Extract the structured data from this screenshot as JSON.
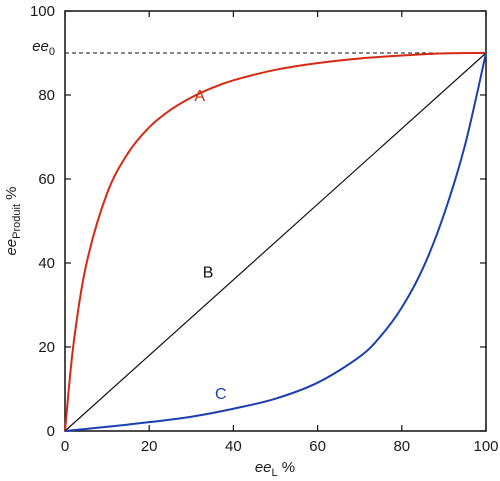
{
  "chart_data": {
    "type": "line",
    "xlabel": {
      "main": "ee",
      "sub": "L",
      "unit": " %"
    },
    "ylabel": {
      "main": "ee",
      "sub": "Produit",
      "unit": " %"
    },
    "xlim": [
      0,
      100
    ],
    "ylim": [
      0,
      100
    ],
    "xticks": [
      "0",
      "20",
      "40",
      "60",
      "80",
      "100"
    ],
    "yticks": [
      "0",
      "20",
      "40",
      "60",
      "80",
      "100"
    ],
    "grid": false,
    "reference_line": {
      "label_main": "ee",
      "label_sub": "0",
      "y": 90,
      "style": "dashed"
    },
    "series": [
      {
        "name": "A",
        "color": "#d42a12",
        "label_at": [
          32,
          80
        ],
        "x": [
          0,
          2,
          5,
          10,
          15,
          20,
          25,
          30,
          35,
          40,
          50,
          60,
          70,
          80,
          90,
          100
        ],
        "y": [
          0,
          20.5,
          39.4,
          56.6,
          66.2,
          72.3,
          76.4,
          79.4,
          81.7,
          83.5,
          86.0,
          87.6,
          88.7,
          89.4,
          89.9,
          90.0
        ]
      },
      {
        "name": "B",
        "color": "#111111",
        "label_at": [
          34,
          38
        ],
        "x": [
          0,
          100
        ],
        "y": [
          0,
          90
        ]
      },
      {
        "name": "C",
        "color": "#1b3fb0",
        "label_at": [
          37,
          9
        ],
        "x": [
          0,
          10,
          20,
          30,
          40,
          50,
          60,
          70,
          75,
          80,
          85,
          90,
          95,
          100
        ],
        "y": [
          0,
          1.0,
          2.1,
          3.4,
          5.3,
          7.7,
          11.5,
          17.7,
          22.6,
          29.4,
          38.7,
          51.5,
          68.0,
          90.0
        ]
      }
    ]
  }
}
